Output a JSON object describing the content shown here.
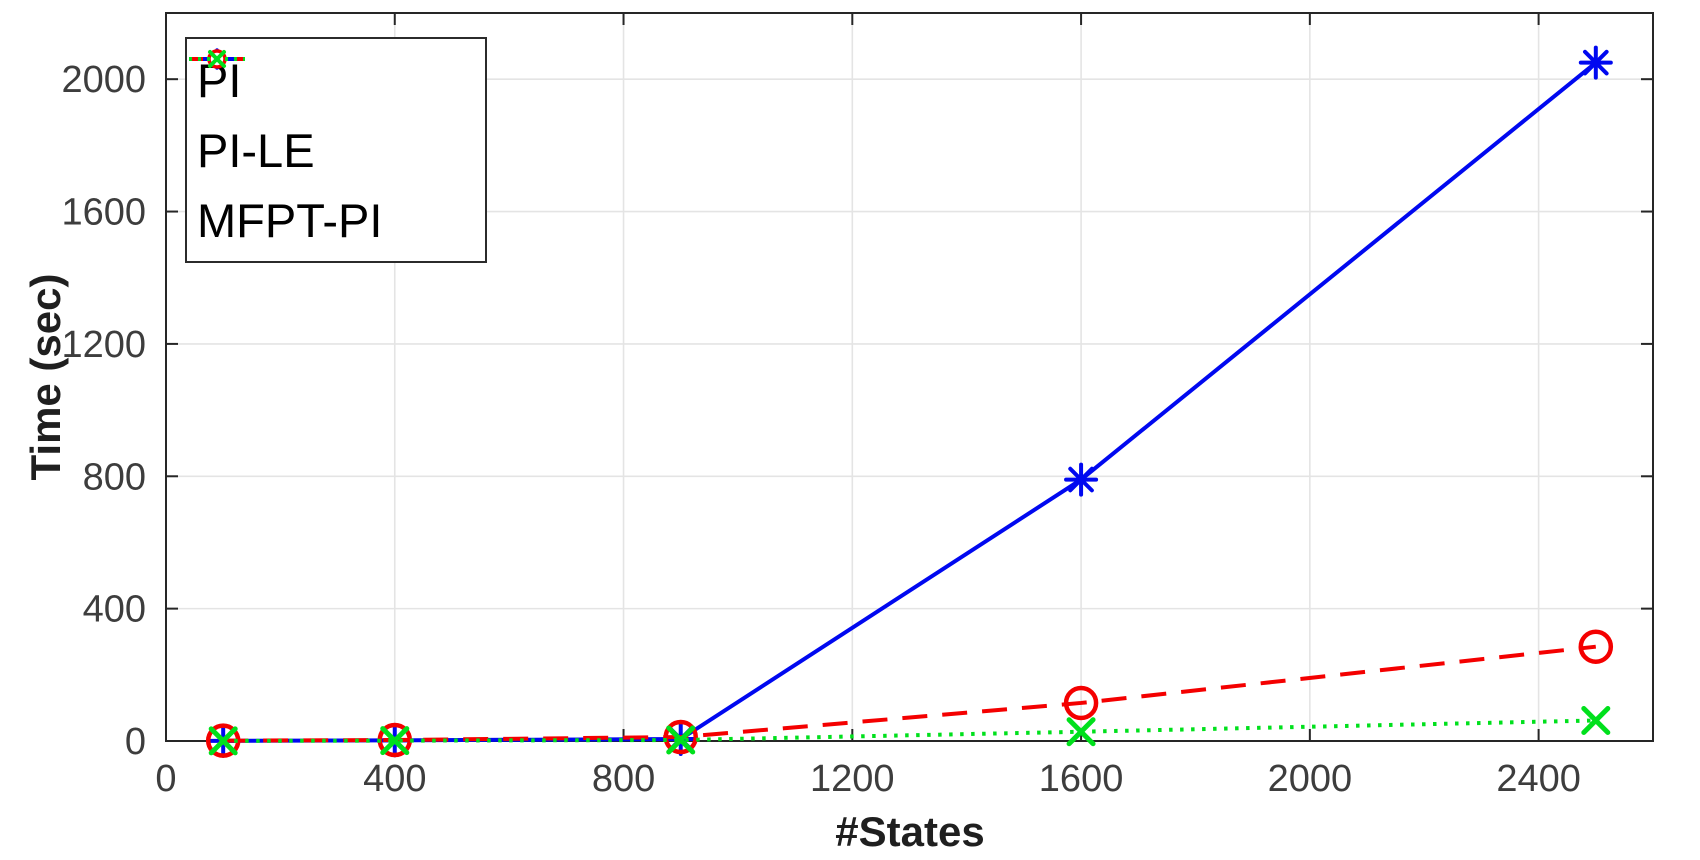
{
  "chart_data": {
    "type": "line",
    "title": "",
    "xlabel": "#States",
    "ylabel": "Time (sec)",
    "xlim": [
      0,
      2600
    ],
    "ylim": [
      0,
      2200
    ],
    "xticks": [
      0,
      400,
      800,
      1200,
      1600,
      2000,
      2400
    ],
    "yticks": [
      0,
      400,
      800,
      1200,
      1600,
      2000
    ],
    "grid": true,
    "legend_position": "top-left",
    "x": [
      100,
      400,
      900,
      1600,
      2500
    ],
    "series": [
      {
        "name": "PI",
        "color": "#0008f0",
        "line_style": "solid",
        "marker": "asterisk",
        "values": [
          0.5,
          2,
          6,
          790,
          2050
        ]
      },
      {
        "name": "PI-LE",
        "color": "#f40000",
        "line_style": "dashed",
        "marker": "circle",
        "values": [
          1,
          3,
          12,
          115,
          285
        ]
      },
      {
        "name": "MFPT-PI",
        "color": "#00e01c",
        "line_style": "dotted",
        "marker": "x",
        "values": [
          0.3,
          1,
          3,
          28,
          62
        ]
      }
    ]
  },
  "style_colors": {
    "grid": "#e4e4e4",
    "axis": "#262626",
    "tick_label": "#3d3d3d",
    "axis_label": "#1f1f1f",
    "legend_border": "#2b2b2b",
    "legend_background": "#ffffff",
    "legend_text": "#000000"
  }
}
